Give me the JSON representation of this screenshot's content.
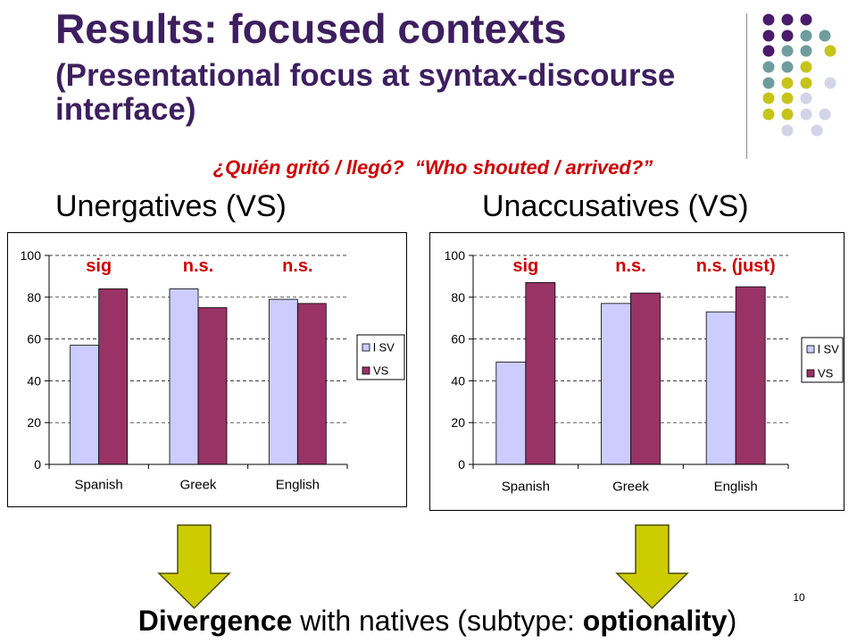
{
  "slide": {
    "title": "Results: focused contexts",
    "subtitle": "(Presentational focus at syntax-discourse interface)",
    "question": "¿Quién gritó / llegó?  “Who shouted / arrived?”",
    "page_number": "10",
    "conclusion": {
      "emphasis_1": "Divergence",
      "text_1": " with natives (subtype: ",
      "emphasis_2": "optionality",
      "text_2": ")"
    }
  },
  "panels": {
    "left": {
      "heading": "Unergatives (VS)"
    },
    "right": {
      "heading": "Unaccusatives (VS)"
    }
  },
  "icons": {
    "left_arrow": "down-arrow-icon",
    "right_arrow": "down-arrow-icon",
    "ornament": "dot-grid-ornament"
  },
  "colors": {
    "title": "#3d1f5f",
    "question": "#cc0000",
    "annotation": "#cc0000",
    "arrow_fill": "#cccc00",
    "arrow_stroke": "#4d4d00",
    "ornament": {
      "purple": "#4a1b6a",
      "teal": "#6f9d9d",
      "olive": "#c6c41b",
      "lavender": "#d4d4e8"
    }
  },
  "chart_data": [
    {
      "type": "bar",
      "categories": [
        "Spanish",
        "Greek",
        "English"
      ],
      "series": [
        {
          "name": "l SV",
          "color": "#ccccff",
          "values": [
            57,
            84,
            79
          ]
        },
        {
          "name": "VS",
          "color": "#993366",
          "values": [
            84,
            75,
            77
          ]
        }
      ],
      "yticks": [
        0,
        20,
        40,
        60,
        80,
        100
      ],
      "ylim": [
        0,
        100
      ],
      "grid": true,
      "legend": "right",
      "annotations": [
        "sig",
        "n.s.",
        "n.s."
      ]
    },
    {
      "type": "bar",
      "categories": [
        "Spanish",
        "Greek",
        "English"
      ],
      "series": [
        {
          "name": "l SV",
          "color": "#ccccff",
          "values": [
            49,
            77,
            73
          ]
        },
        {
          "name": "VS",
          "color": "#993366",
          "values": [
            87,
            82,
            85
          ]
        }
      ],
      "yticks": [
        0,
        20,
        40,
        60,
        80,
        100
      ],
      "ylim": [
        0,
        100
      ],
      "grid": true,
      "legend": "right",
      "annotations": [
        "sig",
        "n.s.",
        "n.s. (just)"
      ]
    }
  ]
}
